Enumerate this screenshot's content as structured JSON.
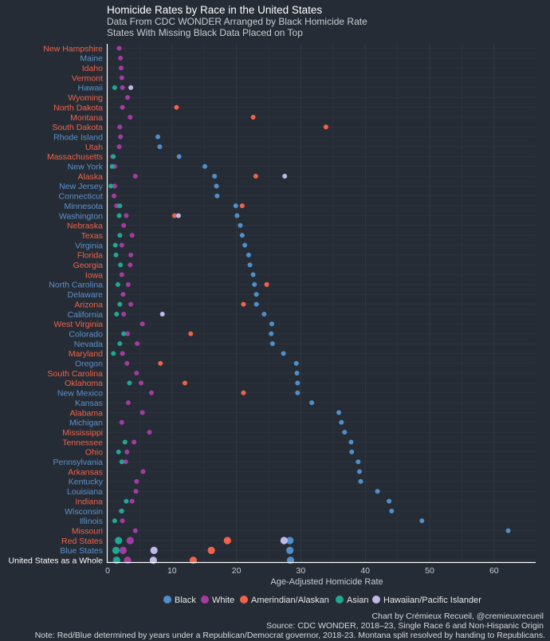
{
  "chart_data": {
    "type": "scatter",
    "title": "Homicide Rates by Race in the United States",
    "subtitle": [
      "Data From CDC WONDER Arranged by Black Homicide Rate",
      "States With Missing Black Data Placed on Top"
    ],
    "xlabel": "Age-Adjusted Homicide Rate",
    "xlim": [
      0,
      64
    ],
    "xticks": [
      0,
      10,
      20,
      30,
      40,
      50,
      60
    ],
    "grid": true,
    "legend_position": "bottom",
    "series_names": [
      "Black",
      "White",
      "Amerindian/Alaskan",
      "Asian",
      "Hawaiian/Pacific Islander"
    ],
    "series_colors": [
      "#4f8fca",
      "#a23ca3",
      "#f1634a",
      "#1fa894",
      "#c1b8ea"
    ],
    "label_colors": {
      "R": "#f1634a",
      "D": "#5b93ce",
      "W": "#ffffff"
    },
    "categories": [
      "New Hampshire",
      "Maine",
      "Idaho",
      "Vermont",
      "Hawaii",
      "Wyoming",
      "North Dakota",
      "Montana",
      "South Dakota",
      "Rhode Island",
      "Utah",
      "Massachusetts",
      "New York",
      "Alaska",
      "New Jersey",
      "Connecticut",
      "Minnesota",
      "Washington",
      "Nebraska",
      "Texas",
      "Virginia",
      "Florida",
      "Georgia",
      "Iowa",
      "North Carolina",
      "Delaware",
      "Arizona",
      "California",
      "West Virginia",
      "Colorado",
      "Nevada",
      "Maryland",
      "Oregon",
      "South Carolina",
      "Oklahoma",
      "New Mexico",
      "Kansas",
      "Alabama",
      "Michigan",
      "Mississippi",
      "Tennessee",
      "Ohio",
      "Pennsylvania",
      "Arkansas",
      "Kentucky",
      "Louisiana",
      "Indiana",
      "Wisconsin",
      "Illinois",
      "Missouri",
      "Red States",
      "Blue States",
      "United States as a Whole"
    ],
    "label_party": [
      "R",
      "D",
      "R",
      "R",
      "D",
      "R",
      "R",
      "R",
      "R",
      "D",
      "R",
      "R",
      "D",
      "R",
      "D",
      "D",
      "D",
      "D",
      "R",
      "R",
      "D",
      "R",
      "R",
      "R",
      "D",
      "D",
      "R",
      "D",
      "R",
      "D",
      "D",
      "R",
      "D",
      "R",
      "R",
      "D",
      "D",
      "R",
      "D",
      "R",
      "R",
      "R",
      "D",
      "R",
      "D",
      "D",
      "R",
      "D",
      "D",
      "R",
      "R",
      "D",
      "W"
    ],
    "series": [
      {
        "name": "Black",
        "values": [
          null,
          null,
          null,
          null,
          null,
          null,
          null,
          null,
          null,
          7.8,
          8.1,
          11.1,
          15.1,
          16.6,
          16.9,
          17.0,
          19.9,
          20.1,
          20.6,
          20.9,
          21.3,
          21.9,
          22.1,
          22.6,
          22.8,
          23.1,
          23.1,
          24.3,
          25.5,
          25.4,
          25.6,
          27.3,
          29.3,
          29.4,
          29.5,
          29.5,
          31.7,
          35.9,
          36.3,
          36.8,
          37.8,
          37.9,
          38.9,
          39.1,
          39.3,
          41.9,
          43.7,
          44.1,
          48.8,
          62.2,
          28.3,
          28.3,
          28.4
        ]
      },
      {
        "name": "White",
        "values": [
          1.8,
          2.0,
          2.1,
          2.2,
          2.3,
          3.1,
          2.3,
          3.5,
          1.9,
          2.0,
          1.8,
          0.8,
          1.1,
          4.3,
          1.1,
          1.0,
          1.4,
          2.9,
          2.5,
          3.8,
          2.2,
          3.6,
          3.5,
          2.2,
          3.2,
          2.4,
          3.6,
          2.5,
          5.4,
          3.1,
          4.6,
          2.3,
          3.0,
          4.5,
          5.2,
          6.8,
          3.2,
          5.4,
          2.2,
          6.5,
          4.1,
          3.0,
          2.8,
          5.5,
          4.5,
          4.4,
          3.8,
          2.1,
          2.3,
          4.3,
          3.5,
          2.4,
          3.1
        ]
      },
      {
        "name": "Amerindian/Alaskan",
        "values": [
          null,
          null,
          null,
          null,
          null,
          null,
          10.7,
          22.6,
          33.9,
          null,
          null,
          null,
          null,
          23.0,
          null,
          null,
          20.9,
          10.4,
          null,
          null,
          null,
          null,
          null,
          null,
          24.7,
          null,
          21.1,
          null,
          null,
          12.9,
          null,
          null,
          8.2,
          null,
          12.0,
          21.1,
          null,
          null,
          null,
          null,
          null,
          null,
          null,
          null,
          null,
          null,
          null,
          null,
          null,
          null,
          18.6,
          16.1,
          13.3
        ]
      },
      {
        "name": "Asian",
        "values": [
          null,
          null,
          null,
          null,
          1.1,
          null,
          null,
          null,
          null,
          null,
          null,
          0.9,
          0.7,
          null,
          0.5,
          null,
          1.9,
          1.8,
          null,
          1.9,
          1.2,
          1.3,
          2.0,
          null,
          1.6,
          null,
          1.9,
          1.4,
          null,
          2.5,
          1.9,
          0.9,
          null,
          null,
          3.4,
          null,
          null,
          null,
          null,
          null,
          2.7,
          1.7,
          2.2,
          null,
          null,
          null,
          2.9,
          2.2,
          1.1,
          null,
          1.7,
          1.3,
          1.4
        ]
      },
      {
        "name": "Hawaiian/Pacific Islander",
        "values": [
          null,
          null,
          null,
          null,
          3.6,
          null,
          null,
          null,
          null,
          null,
          null,
          null,
          null,
          27.5,
          null,
          null,
          null,
          11.0,
          null,
          null,
          null,
          null,
          null,
          null,
          null,
          null,
          null,
          8.5,
          null,
          null,
          null,
          null,
          null,
          null,
          null,
          null,
          null,
          null,
          null,
          null,
          null,
          null,
          null,
          null,
          null,
          null,
          null,
          null,
          null,
          null,
          27.4,
          7.2,
          7.1
        ]
      }
    ]
  },
  "caption": [
    "Chart by Crémieux Recueil, @cremieuxrecueil",
    "Source: CDC WONDER, 2018–23, Single Race 6 and Non-Hispanic Origin",
    "Note: Red/Blue determined by years under a Republican/Democrat governor, 2018-23. Montana split resolved by handing to Republicans."
  ]
}
